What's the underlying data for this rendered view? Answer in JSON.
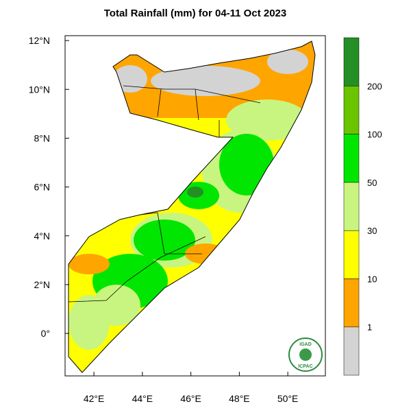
{
  "map": {
    "title": "Total Rainfall (mm) for 04-11 Oct 2023",
    "xlim": [
      40.81,
      51.55
    ],
    "ylim": [
      -1.74,
      12.2
    ],
    "xticks": [
      {
        "value": 42,
        "label": "42°E"
      },
      {
        "value": 44,
        "label": "44°E"
      },
      {
        "value": 46,
        "label": "46°E"
      },
      {
        "value": 48,
        "label": "48°E"
      },
      {
        "value": 50,
        "label": "50°E"
      }
    ],
    "yticks": [
      {
        "value": 0,
        "label": "0°"
      },
      {
        "value": 2,
        "label": "2°N"
      },
      {
        "value": 4,
        "label": "4°N"
      },
      {
        "value": 6,
        "label": "6°N"
      },
      {
        "value": 8,
        "label": "8°N"
      },
      {
        "value": 10,
        "label": "10°N"
      },
      {
        "value": 12,
        "label": "12°N"
      }
    ],
    "colorbar": {
      "colors": [
        "#d3d3d3",
        "#ffa500",
        "#ffff00",
        "#c8f57f",
        "#00e600",
        "#6ac400",
        "#248f24"
      ],
      "labels": [
        "1",
        "10",
        "30",
        "50",
        "100",
        "200"
      ]
    },
    "logo": {
      "top": "IGAD",
      "bottom": "ICPAC"
    }
  }
}
